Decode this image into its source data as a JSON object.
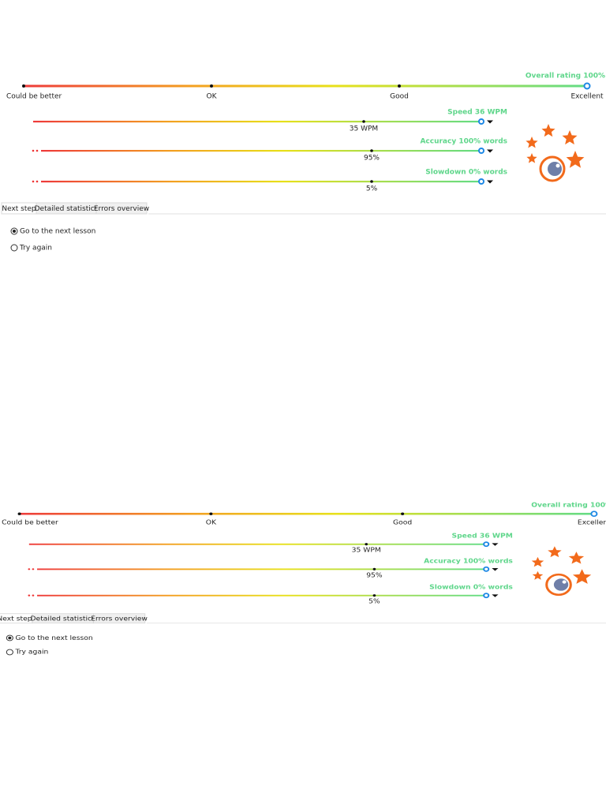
{
  "overall": {
    "label": "Overall rating 100%",
    "scale": [
      "Could be better",
      "OK",
      "Good",
      "Excellent"
    ]
  },
  "metrics": [
    {
      "label": "Speed 36 WPM",
      "target": "35 WPM"
    },
    {
      "label": "Accuracy 100% words",
      "target": "95%"
    },
    {
      "label": "Slowdown 0% words",
      "target": "5%"
    }
  ],
  "tabs": [
    "Next step",
    "Detailed statistics",
    "Errors overview"
  ],
  "options": [
    {
      "label": "Go to the next lesson",
      "selected": true
    },
    {
      "label": "Try again",
      "selected": false
    }
  ]
}
